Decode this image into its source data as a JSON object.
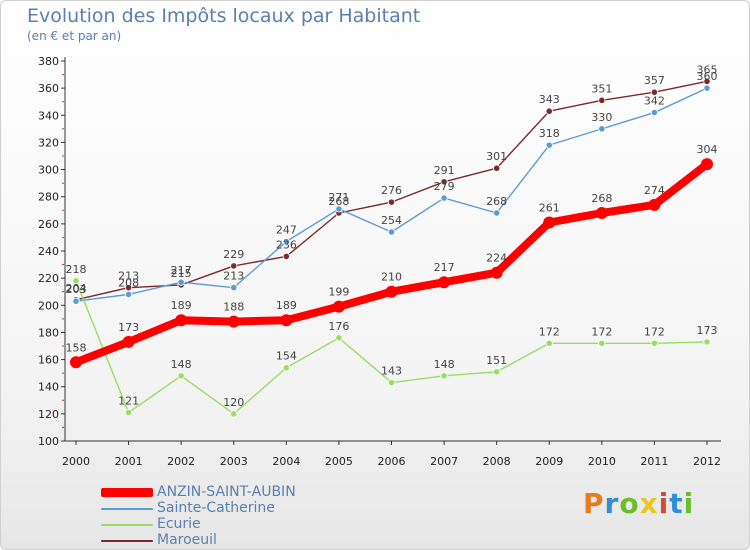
{
  "header": {
    "title": "Evolution des Impôts locaux par Habitant",
    "subtitle": "(en € et par an)"
  },
  "logo": {
    "text": "Proxiti",
    "colors": [
      "#e87b1e",
      "#2f8fd8",
      "#6cbf2a",
      "#e8c81e",
      "#d84a2f",
      "#2f8fd8",
      "#6cbf2a"
    ]
  },
  "chart_data": {
    "type": "line",
    "x": [
      "2000",
      "2001",
      "2002",
      "2003",
      "2004",
      "2005",
      "2006",
      "2007",
      "2008",
      "2009",
      "2010",
      "2011",
      "2012"
    ],
    "ylim": [
      100,
      380
    ],
    "yticks": [
      100,
      120,
      140,
      160,
      180,
      200,
      220,
      240,
      260,
      280,
      300,
      320,
      340,
      360,
      380
    ],
    "grid": false,
    "legend_position": "bottom-left",
    "series": [
      {
        "name": "Maroeuil",
        "color": "#7a2a2a",
        "values": [
          204,
          213,
          215,
          229,
          236,
          268,
          276,
          291,
          301,
          343,
          351,
          357,
          365
        ]
      },
      {
        "name": "Sainte-Catherine",
        "color": "#5b9bd5",
        "values": [
          203,
          208,
          217,
          213,
          247,
          271,
          254,
          279,
          268,
          318,
          330,
          342,
          360
        ]
      },
      {
        "name": "Ecurie",
        "color": "#99dd66",
        "values": [
          218,
          121,
          148,
          120,
          154,
          176,
          143,
          148,
          151,
          172,
          172,
          172,
          173
        ]
      },
      {
        "name": "ANZIN-SAINT-AUBIN",
        "color": "#ff0000",
        "values": [
          158,
          173,
          189,
          188,
          189,
          199,
          210,
          217,
          224,
          261,
          268,
          274,
          304
        ]
      }
    ]
  },
  "legend": [
    {
      "name": "ANZIN-SAINT-AUBIN",
      "color": "#ff0000"
    },
    {
      "name": "Sainte-Catherine",
      "color": "#5b9bd5"
    },
    {
      "name": "Ecurie",
      "color": "#99dd66"
    },
    {
      "name": "Maroeuil",
      "color": "#7a2a2a"
    }
  ]
}
